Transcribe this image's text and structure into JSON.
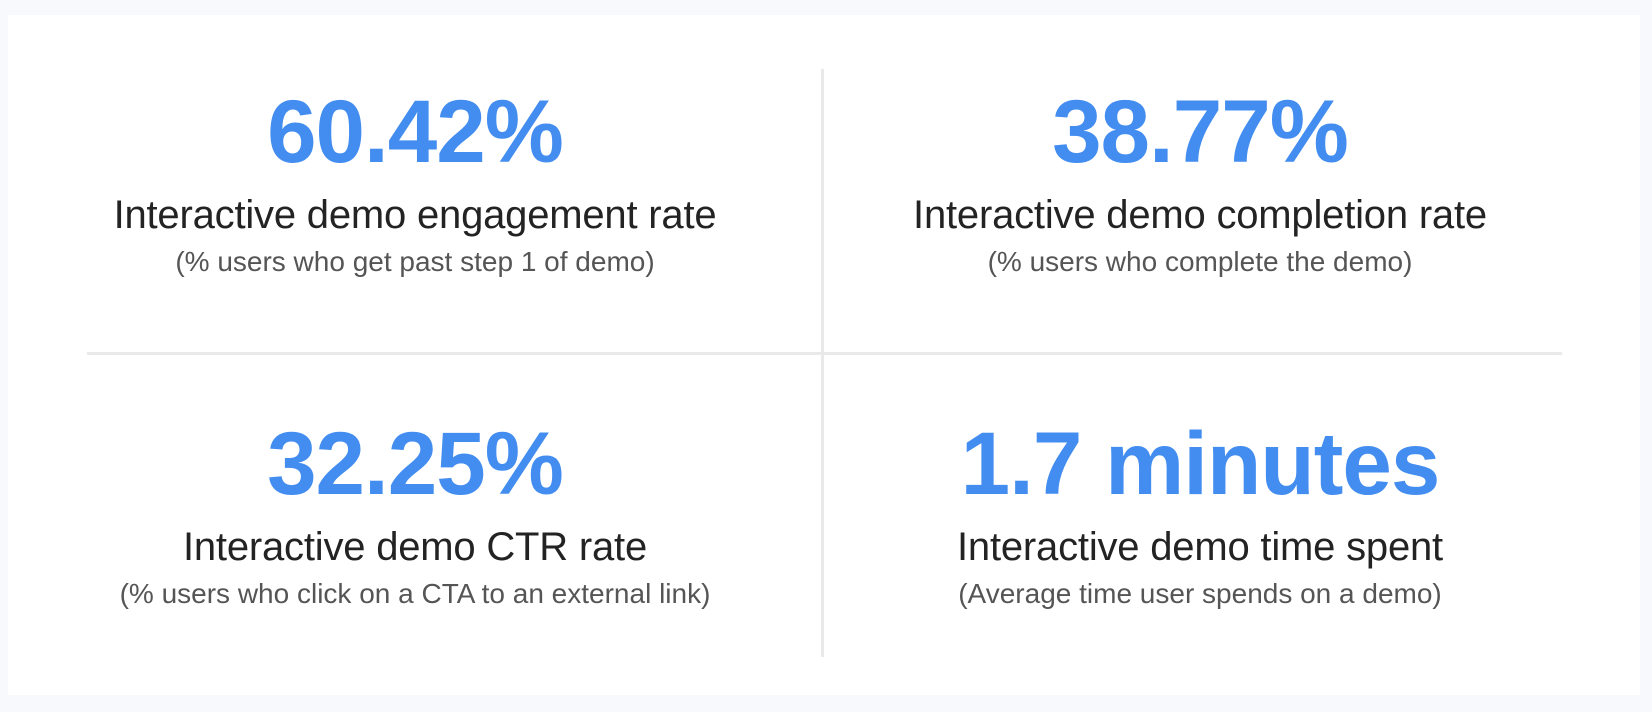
{
  "theme": {
    "accent": "#438DF0",
    "title_color": "#232323",
    "subtitle_color": "#555555",
    "background": "#F8F9FC",
    "card": "#FFFFFF",
    "divider": "#E9E9E9"
  },
  "stats": [
    {
      "value": "60.42%",
      "title": "Interactive demo engagement rate",
      "subtitle": "(% users who get past step 1 of demo)"
    },
    {
      "value": "38.77%",
      "title": "Interactive demo completion rate",
      "subtitle": "(% users who complete the demo)"
    },
    {
      "value": "32.25%",
      "title": "Interactive demo CTR rate",
      "subtitle": "(% users who click on a CTA to an external link)"
    },
    {
      "value": "1.7 minutes",
      "title": "Interactive demo time spent",
      "subtitle": "(Average time user spends on a demo)"
    }
  ]
}
